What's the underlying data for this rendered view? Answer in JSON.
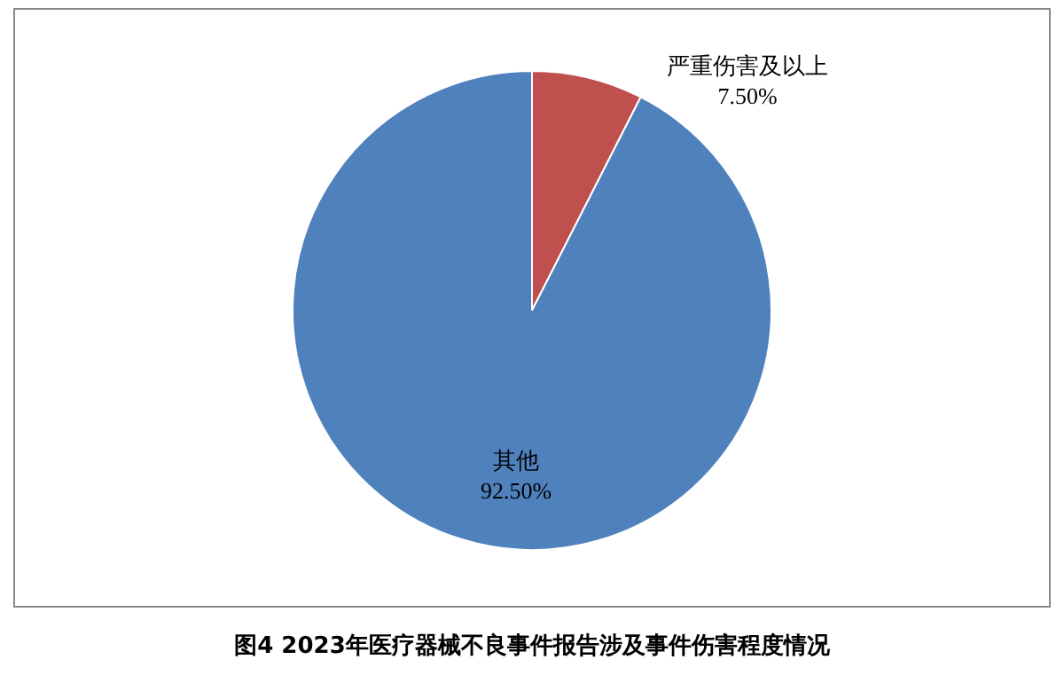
{
  "chart_data": {
    "type": "pie",
    "title": "图4 2023年医疗器械不良事件报告涉及事件伤害程度情况",
    "categories": [
      "严重伤害及以上",
      "其他"
    ],
    "values": [
      7.5,
      92.5
    ],
    "colors": [
      "#c0504d",
      "#4f81bd"
    ],
    "value_labels": [
      "7.50%",
      "92.50%"
    ]
  }
}
